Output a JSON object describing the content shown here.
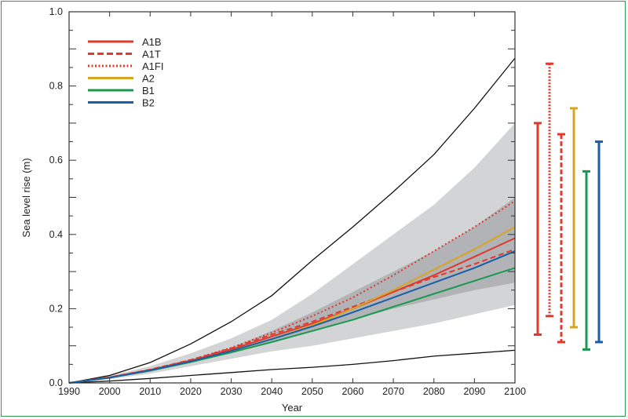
{
  "chart_data": {
    "type": "line",
    "title": "",
    "xlabel": "Year",
    "ylabel": "Sea level rise (m)",
    "xlim": [
      1990,
      2100
    ],
    "ylim": [
      0,
      1.0
    ],
    "xticks": [
      "1990",
      "2000",
      "2010",
      "2020",
      "2030",
      "2040",
      "2050",
      "2060",
      "2070",
      "2080",
      "2090",
      "2100"
    ],
    "yticks": [
      "0.0",
      "0.2",
      "0.4",
      "0.6",
      "0.8",
      "1.0"
    ],
    "grid": false,
    "legend_position": "top-left",
    "x": [
      1990,
      2000,
      2010,
      2020,
      2030,
      2040,
      2050,
      2060,
      2070,
      2080,
      2090,
      2100
    ],
    "envelopes": {
      "upper_bound_line": [
        0,
        0.02,
        0.055,
        0.105,
        0.165,
        0.235,
        0.33,
        0.42,
        0.515,
        0.615,
        0.74,
        0.875
      ],
      "lower_bound_line": [
        0,
        0.005,
        0.012,
        0.02,
        0.028,
        0.036,
        0.042,
        0.05,
        0.06,
        0.072,
        0.08,
        0.088
      ],
      "outer_band_upper": [
        0,
        0.02,
        0.045,
        0.08,
        0.12,
        0.17,
        0.24,
        0.32,
        0.4,
        0.48,
        0.58,
        0.7
      ],
      "outer_band_lower": [
        0,
        0.01,
        0.025,
        0.045,
        0.065,
        0.085,
        0.1,
        0.12,
        0.14,
        0.16,
        0.185,
        0.21
      ],
      "inner_band_upper": [
        0,
        0.015,
        0.035,
        0.06,
        0.095,
        0.14,
        0.19,
        0.245,
        0.3,
        0.355,
        0.42,
        0.5
      ],
      "inner_band_lower": [
        0,
        0.013,
        0.03,
        0.055,
        0.08,
        0.11,
        0.14,
        0.17,
        0.2,
        0.225,
        0.25,
        0.27
      ]
    },
    "series": [
      {
        "name": "A1B",
        "style": "solid",
        "color": "#e03a2c",
        "values": [
          0,
          0.015,
          0.035,
          0.06,
          0.09,
          0.125,
          0.16,
          0.2,
          0.245,
          0.29,
          0.34,
          0.39
        ],
        "range_2100": [
          0.13,
          0.7
        ]
      },
      {
        "name": "A1T",
        "style": "dashed",
        "color": "#e03a2c",
        "values": [
          0,
          0.015,
          0.036,
          0.062,
          0.093,
          0.13,
          0.165,
          0.205,
          0.245,
          0.285,
          0.32,
          0.36
        ],
        "range_2100": [
          0.11,
          0.67
        ]
      },
      {
        "name": "A1FI",
        "style": "dotted",
        "color": "#e03a2c",
        "values": [
          0,
          0.015,
          0.035,
          0.062,
          0.095,
          0.135,
          0.18,
          0.23,
          0.29,
          0.355,
          0.42,
          0.49
        ],
        "range_2100": [
          0.18,
          0.86
        ]
      },
      {
        "name": "A2",
        "style": "solid",
        "color": "#d9a520",
        "values": [
          0,
          0.014,
          0.033,
          0.057,
          0.085,
          0.118,
          0.155,
          0.2,
          0.25,
          0.305,
          0.36,
          0.42
        ],
        "range_2100": [
          0.15,
          0.74
        ]
      },
      {
        "name": "B1",
        "style": "solid",
        "color": "#1a9a50",
        "values": [
          0,
          0.014,
          0.033,
          0.056,
          0.082,
          0.11,
          0.14,
          0.17,
          0.205,
          0.24,
          0.275,
          0.31
        ],
        "range_2100": [
          0.09,
          0.57
        ]
      },
      {
        "name": "B2",
        "style": "solid",
        "color": "#1a5ea8",
        "values": [
          0,
          0.014,
          0.034,
          0.058,
          0.086,
          0.118,
          0.152,
          0.19,
          0.23,
          0.27,
          0.31,
          0.355
        ],
        "range_2100": [
          0.11,
          0.65
        ]
      }
    ]
  }
}
